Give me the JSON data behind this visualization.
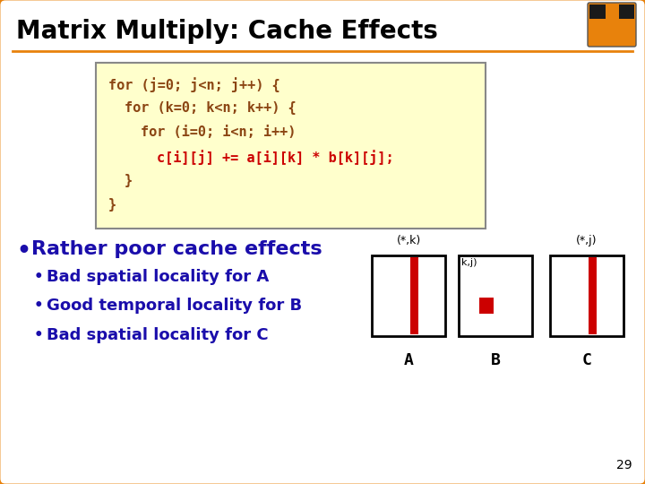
{
  "title": "Matrix Multiply: Cache Effects",
  "title_color": "#000000",
  "title_fontsize": 20,
  "bg_color": "#ffffff",
  "outer_border_color": "#E8820C",
  "slide_number": "29",
  "code_bg": "#FFFFCC",
  "code_border": "#888888",
  "code_color_normal": "#8B4513",
  "code_color_highlight": "#CC0000",
  "bullet_main": "Rather poor cache effects",
  "bullet_main_color": "#1A0DAB",
  "bullet_color": "#1A0DAB",
  "bullets_corrected": [
    "Bad spatial locality for A",
    "Good temporal locality for B",
    "Bad spatial locality for C"
  ],
  "matrix_labels_top": [
    "(*,k)",
    "",
    "(*,j)"
  ],
  "matrix_labels_bottom": [
    "A",
    "B",
    "C"
  ],
  "matrix_inner_label": "k,j)",
  "red_color": "#CC0000",
  "display_lines": [
    {
      "text": "for (j=0; j<n; j++) {",
      "highlight": false,
      "indent": 0
    },
    {
      "text": "for (k=0; k<n; k++) {",
      "highlight": false,
      "indent": 1
    },
    {
      "text": "for (i=0; i<n; i++)",
      "highlight": false,
      "indent": 2
    },
    {
      "text": "c[i][j] += a[i][k] * b[k][j];",
      "highlight": true,
      "indent": 3
    },
    {
      "text": "}",
      "highlight": false,
      "indent": 1
    },
    {
      "text": "}",
      "highlight": false,
      "indent": 0
    }
  ]
}
